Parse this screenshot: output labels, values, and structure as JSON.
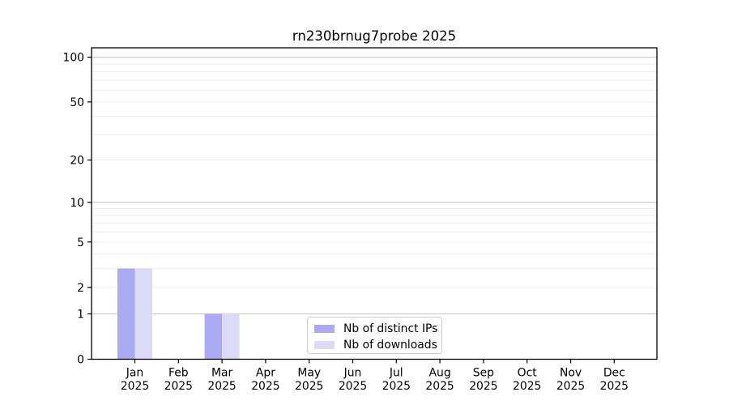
{
  "figure": {
    "background": "#ffffff"
  },
  "chart_data": {
    "type": "bar",
    "title": "rn230brnug7probe 2025",
    "categories": [
      "Jan",
      "Feb",
      "Mar",
      "Apr",
      "May",
      "Jun",
      "Jul",
      "Aug",
      "Sep",
      "Oct",
      "Nov",
      "Dec"
    ],
    "x_tick_year": "2025",
    "series": [
      {
        "name": "Nb of distinct IPs",
        "color": "#aaaaf2",
        "values": [
          3,
          0,
          1,
          0,
          0,
          0,
          0,
          0,
          0,
          0,
          0,
          0
        ]
      },
      {
        "name": "Nb of downloads",
        "color": "#dbdbf8",
        "values": [
          3,
          0,
          1,
          0,
          0,
          0,
          0,
          0,
          0,
          0,
          0,
          0
        ]
      }
    ],
    "xlabel": "",
    "ylabel": "",
    "yscale": "log10(1+x)",
    "ylim": [
      0,
      115
    ],
    "y_ticks": [
      0,
      1,
      2,
      5,
      10,
      20,
      50,
      100
    ],
    "y_tick_labels": [
      "0",
      "1",
      "2",
      "5",
      "10",
      "20",
      "50",
      "100"
    ],
    "grid": true,
    "major_grid_values": [
      1,
      10,
      100
    ],
    "minor_grid_values": [
      2,
      3,
      4,
      5,
      6,
      7,
      8,
      9,
      20,
      30,
      40,
      50,
      60,
      70,
      80,
      90
    ],
    "legend_position": "inside-bottom-center",
    "colors": {
      "axis": "#000000",
      "text": "#000000",
      "major_grid": "#c6c6c6",
      "minor_grid": "#ededed",
      "legend_border": "#cccccc"
    }
  }
}
